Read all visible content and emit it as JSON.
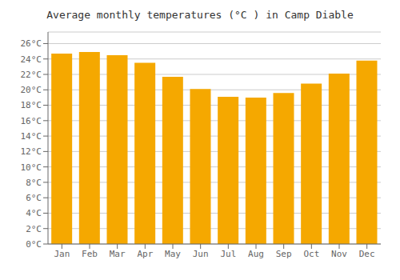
{
  "chart_data": {
    "type": "bar",
    "title": "Average monthly temperatures (°C ) in Camp Diable",
    "categories": [
      "Jan",
      "Feb",
      "Mar",
      "Apr",
      "May",
      "Jun",
      "Jul",
      "Aug",
      "Sep",
      "Oct",
      "Nov",
      "Dec"
    ],
    "values": [
      24.7,
      24.9,
      24.5,
      23.5,
      21.7,
      20.1,
      19.1,
      19.0,
      19.6,
      20.8,
      22.1,
      23.8
    ],
    "color": "#F5A800",
    "ylim": [
      0,
      27.5
    ],
    "yticks": [
      {
        "value": 0,
        "label": "0°C"
      },
      {
        "value": 2,
        "label": "2°C"
      },
      {
        "value": 4,
        "label": "4°C"
      },
      {
        "value": 6,
        "label": "6°C"
      },
      {
        "value": 8,
        "label": "8°C"
      },
      {
        "value": 10,
        "label": "10°C"
      },
      {
        "value": 12,
        "label": "12°C"
      },
      {
        "value": 14,
        "label": "14°C"
      },
      {
        "value": 16,
        "label": "16°C"
      },
      {
        "value": 18,
        "label": "18°C"
      },
      {
        "value": 20,
        "label": "20°C"
      },
      {
        "value": 22,
        "label": "22°C"
      },
      {
        "value": 24,
        "label": "24°C"
      },
      {
        "value": 26,
        "label": "26°C"
      }
    ],
    "grid": true
  }
}
